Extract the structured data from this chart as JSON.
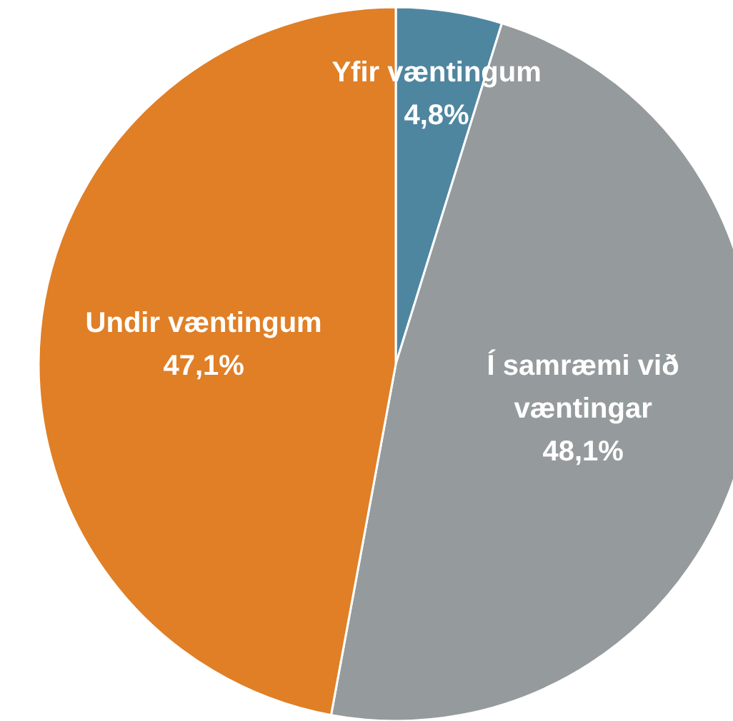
{
  "chart_data": {
    "type": "pie",
    "categories": [
      "Yfir væntingum",
      "Í samræmi við væntingar",
      "Undir væntingum"
    ],
    "values": [
      4.8,
      48.1,
      47.1
    ],
    "value_labels": [
      "4,8%",
      "48,1%",
      "47,1%"
    ],
    "colors": [
      "#4e86a0",
      "#959b9c",
      "#e07f26"
    ]
  }
}
